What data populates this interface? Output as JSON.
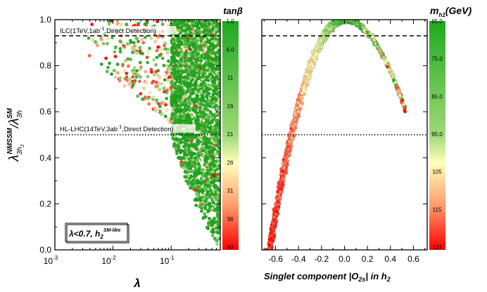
{
  "chart_data": [
    {
      "type": "scatter",
      "xscale": "log",
      "xlim": [
        0.001,
        0.7
      ],
      "ylim": [
        0.0,
        1.0
      ],
      "x_ticks": [
        "10^-3",
        "10^-2",
        "10^-1"
      ],
      "y_ticks": [
        "0.0",
        "0.2",
        "0.4",
        "0.6",
        "0.8",
        "1.0"
      ],
      "xlabel": "λ",
      "ylabel": "λ_{3h2}^{NMSSM} / λ_{3h}^{SM}",
      "legend_box": "λ<0.7, h2SM-like",
      "legend_box_main": "λ<0.7, h",
      "legend_box_sub": "2",
      "legend_box_sup": "SM-like",
      "colorbar": {
        "label": "tanβ",
        "ticks": [
          "1.0",
          "6.0",
          "11",
          "16",
          "21",
          "26",
          "31",
          "36",
          "40"
        ],
        "range": [
          1,
          40
        ],
        "color_low": "#1fa81f",
        "color_mid": "#ffffbb",
        "color_high": "#ff0000"
      },
      "reference_lines": [
        {
          "y": 0.93,
          "style": "dashed",
          "label": "ILC(1TeV,1ab-1,Direct Detection)",
          "label_pre": "ILC(1TeV,1ab",
          "label_sup": "-1",
          "label_post": ",Direct Detection)"
        },
        {
          "y": 0.5,
          "style": "dotted",
          "label": "HL-LHC(14TeV,3ab-1,Direct Detection)",
          "label_pre": "HL-LHC(14TeV,3ab",
          "label_sup": "-1",
          "label_post": ",Direct Detection)"
        }
      ],
      "scatter_description": {
        "dense_region_lambda": [
          0.1,
          0.7
        ],
        "lower_y_boundary_at_lambda_0.1": 0.5,
        "lower_y_boundary_at_lambda_0.7": 0.0,
        "sparse_region_lambda": [
          0.003,
          0.1
        ],
        "sparse_region_y": [
          0.6,
          1.0
        ]
      }
    },
    {
      "type": "scatter",
      "xlim": [
        -0.72,
        0.72
      ],
      "ylim": [
        0.0,
        1.0
      ],
      "x_ticks": [
        "-0.6",
        "-0.4",
        "-0.2",
        "0.0",
        "0.2",
        "0.4",
        "0.6"
      ],
      "xlabel": "Singlet component |O2s| in h2",
      "xlabel_pre": "Singlet component |O",
      "xlabel_sub": "2s",
      "xlabel_post": "| in h",
      "xlabel_sub2": "2",
      "colorbar": {
        "label": "m_{h1}(GeV)",
        "label_main": "m",
        "label_sub": "h1",
        "label_post": "(GeV)",
        "ticks": [
          "65.0",
          "75.0",
          "85.0",
          "95.0",
          "105",
          "115",
          "123"
        ],
        "range": [
          65,
          123
        ],
        "color_low": "#1fa81f",
        "color_mid": "#ffffbb",
        "color_high": "#ff0000"
      },
      "reference_lines": [
        {
          "y": 0.93,
          "style": "dashed"
        },
        {
          "y": 0.5,
          "style": "dotted"
        }
      ],
      "curve_description": {
        "shape": "inverted parabola y ≈ 1 - 2.2·O2s² (right branch narrower)",
        "peak": [
          0.0,
          1.0
        ],
        "left_end": [
          -0.65,
          0.0
        ],
        "right_end": [
          0.53,
          0.61
        ]
      }
    }
  ]
}
